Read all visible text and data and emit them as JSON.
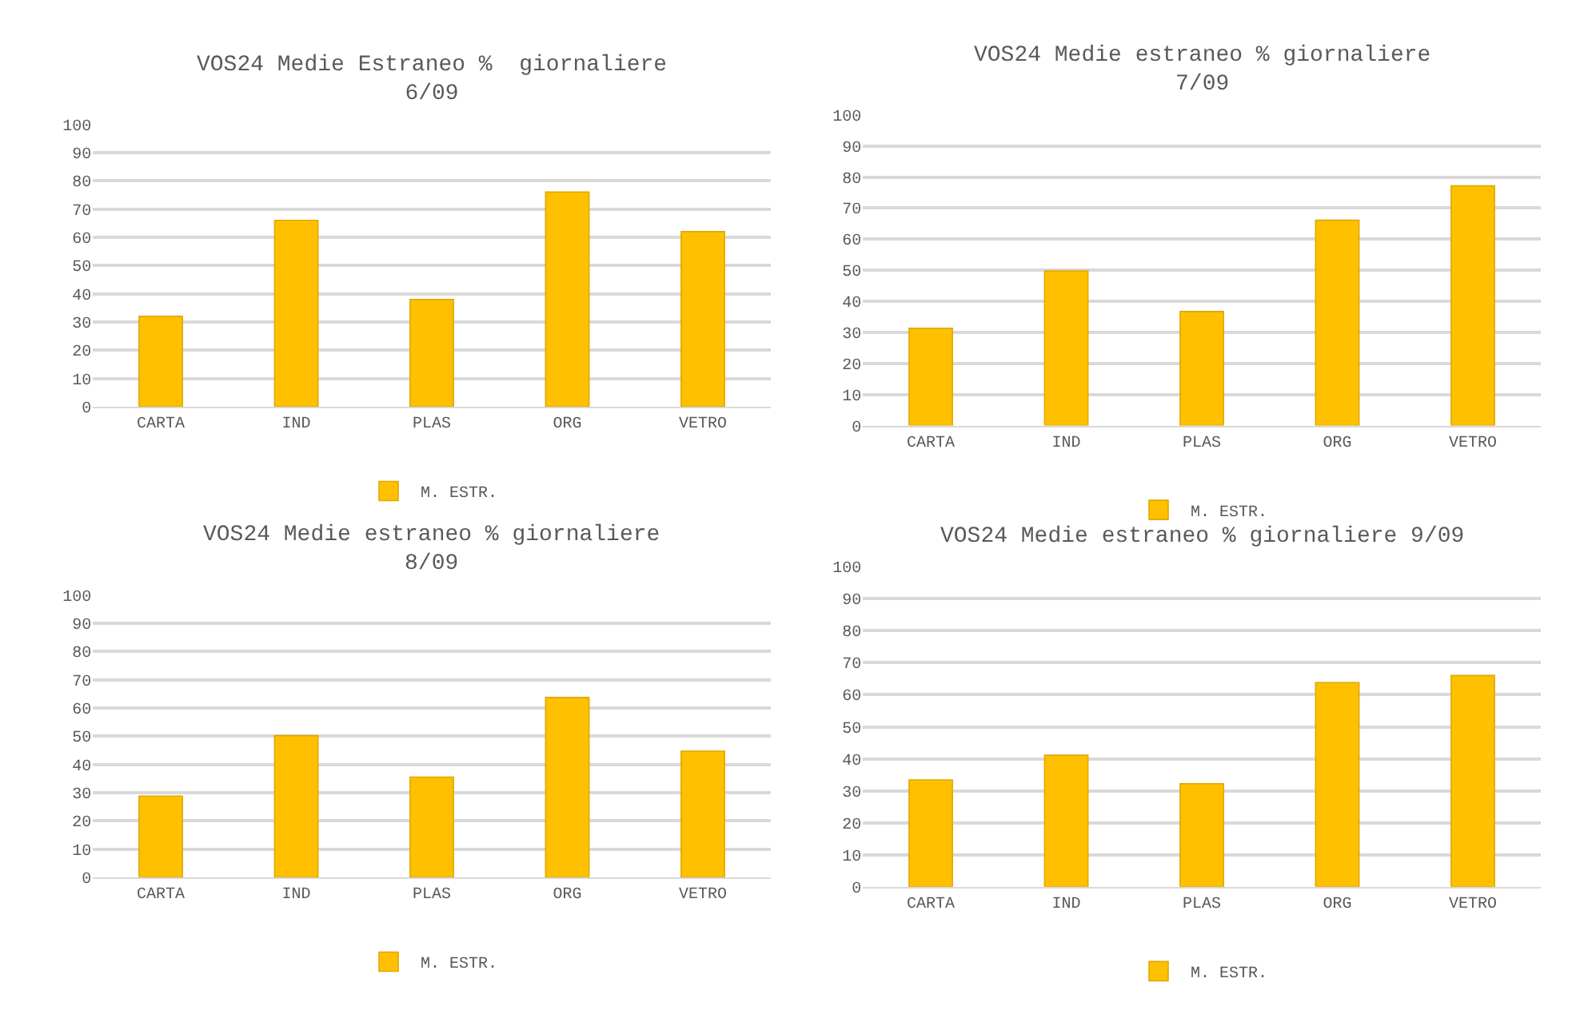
{
  "chart_data": [
    {
      "type": "bar",
      "title": "VOS24 Medie Estraneo %  giornaliere\n6/09",
      "categories": [
        "CARTA",
        "IND",
        "PLAS",
        "ORG",
        "VETRO"
      ],
      "series": [
        {
          "name": "M. ESTR.",
          "color": "#ffc000",
          "values": [
            32,
            66,
            38,
            76,
            62
          ]
        }
      ],
      "ylim": [
        0,
        100
      ],
      "yticks": [
        0,
        10,
        20,
        30,
        40,
        50,
        60,
        70,
        80,
        90,
        100
      ],
      "grid": "y",
      "legend": "bottom"
    },
    {
      "type": "bar",
      "title": "VOS24 Medie estraneo % giornaliere\n7/09",
      "categories": [
        "CARTA",
        "IND",
        "PLAS",
        "ORG",
        "VETRO"
      ],
      "series": [
        {
          "name": "M. ESTR.",
          "color": "#ffc000",
          "values": [
            31.3,
            49.8,
            36.7,
            66.1,
            77.2
          ]
        }
      ],
      "ylim": [
        0,
        100
      ],
      "yticks": [
        0,
        10,
        20,
        30,
        40,
        50,
        60,
        70,
        80,
        90,
        100
      ],
      "grid": "y",
      "legend": "bottom"
    },
    {
      "type": "bar",
      "title": "VOS24 Medie estraneo % giornaliere\n8/09",
      "categories": [
        "CARTA",
        "IND",
        "PLAS",
        "ORG",
        "VETRO"
      ],
      "series": [
        {
          "name": "M. ESTR.",
          "color": "#ffc000",
          "values": [
            28.8,
            50.2,
            35.5,
            63.7,
            44.7
          ]
        }
      ],
      "ylim": [
        0,
        100
      ],
      "yticks": [
        0,
        10,
        20,
        30,
        40,
        50,
        60,
        70,
        80,
        90,
        100
      ],
      "grid": "y",
      "legend": "bottom"
    },
    {
      "type": "bar",
      "title": "VOS24 Medie estraneo % giornaliere 9/09",
      "categories": [
        "CARTA",
        "IND",
        "PLAS",
        "ORG",
        "VETRO"
      ],
      "series": [
        {
          "name": "M. ESTR.",
          "color": "#ffc000",
          "values": [
            33.4,
            41.1,
            32.2,
            63.8,
            66.0
          ]
        }
      ],
      "ylim": [
        0,
        100
      ],
      "yticks": [
        0,
        10,
        20,
        30,
        40,
        50,
        60,
        70,
        80,
        90,
        100
      ],
      "grid": "y",
      "legend": "bottom"
    }
  ]
}
